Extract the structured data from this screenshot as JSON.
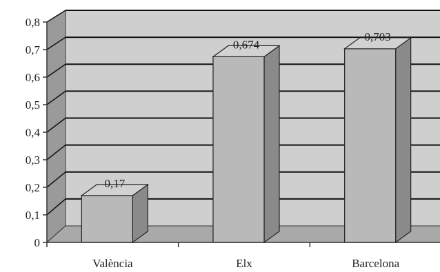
{
  "chart_data": {
    "type": "bar",
    "title": "",
    "xlabel": "",
    "ylabel": "",
    "categories": [
      "València",
      "Elx",
      "Barcelona"
    ],
    "values": [
      0.17,
      0.674,
      0.703
    ],
    "data_labels": [
      "0,17",
      "0,674",
      "0,703"
    ],
    "ylim": [
      0,
      0.8
    ],
    "yticks": [
      "0",
      "0,1",
      "0,2",
      "0,3",
      "0,4",
      "0,5",
      "0,6",
      "0,7",
      "0,8"
    ],
    "grid": true,
    "legend": "none",
    "colors": {
      "bar_front": "#b9b9b9",
      "bar_top": "#d2d2d2",
      "bar_side": "#8a8a8a",
      "back_wall": "#cfcfcf",
      "floor": "#a9a9a9",
      "side_wall": "#9a9a9a",
      "gridline": "#111111",
      "axis": "#333333"
    }
  }
}
